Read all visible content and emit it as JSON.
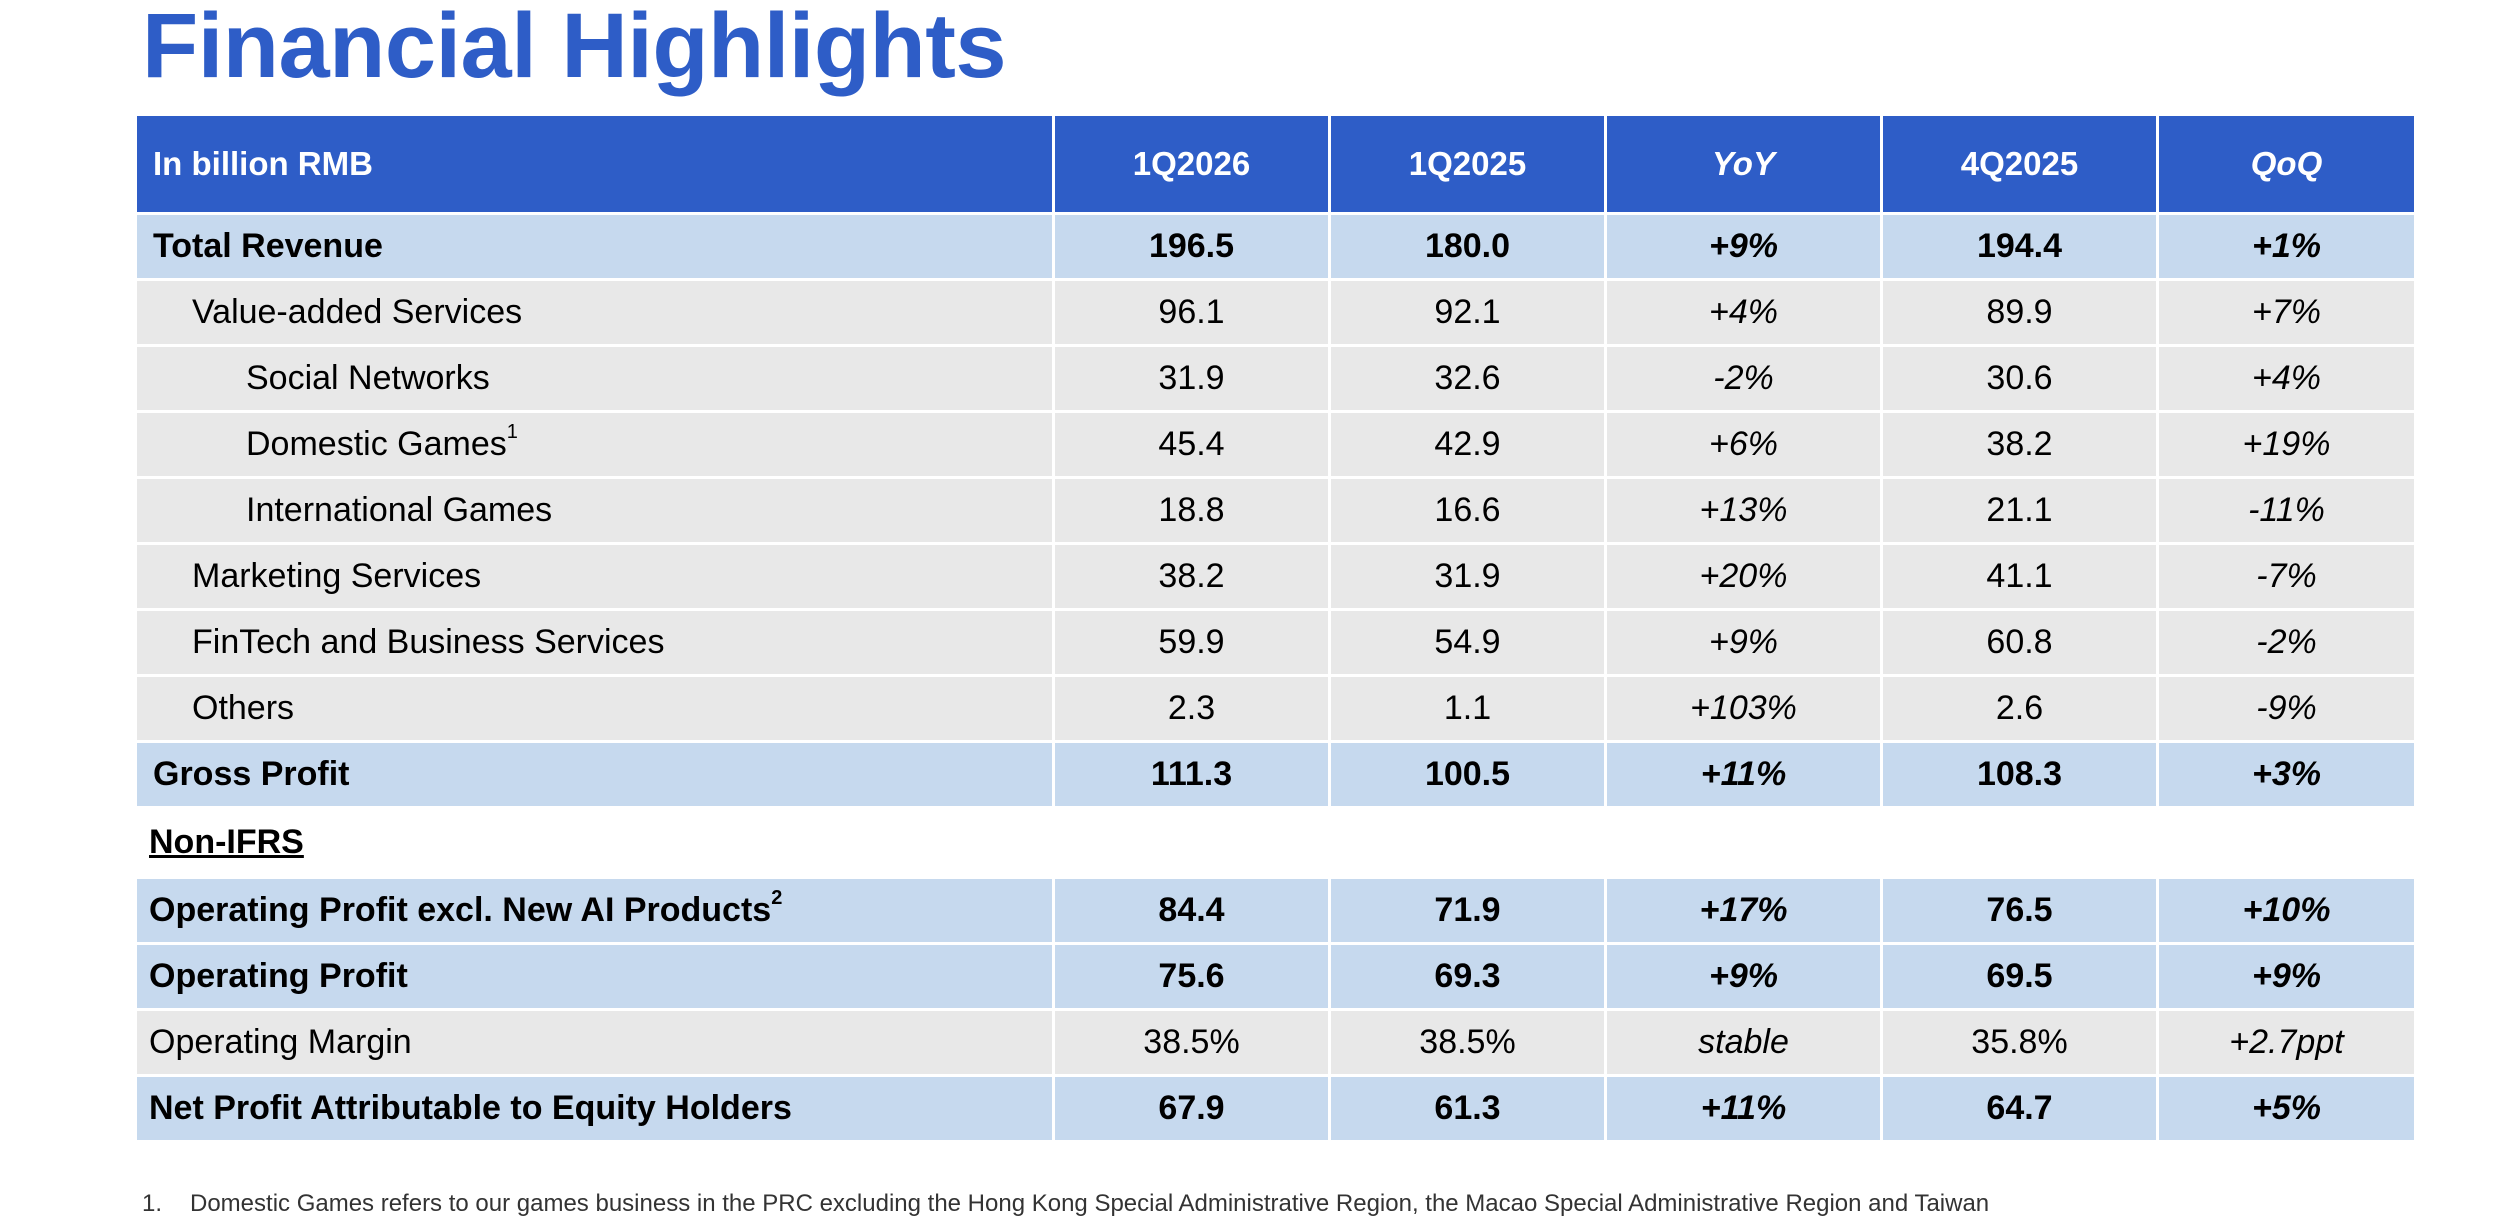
{
  "title": "Financial Highlights",
  "table": {
    "headers": [
      "In billion RMB",
      "1Q2026",
      "1Q2025",
      "YoY",
      "4Q2025",
      "QoQ"
    ],
    "rows": [
      {
        "label": "Total Revenue",
        "sup": "",
        "values": [
          "196.5",
          "180.0",
          "+9%",
          "194.4",
          "+1%"
        ]
      },
      {
        "label": "Value-added Services",
        "sup": "",
        "values": [
          "96.1",
          "92.1",
          "+4%",
          "89.9",
          "+7%"
        ]
      },
      {
        "label": "Social Networks",
        "sup": "",
        "values": [
          "31.9",
          "32.6",
          "-2%",
          "30.6",
          "+4%"
        ]
      },
      {
        "label": "Domestic Games",
        "sup": "1",
        "values": [
          "45.4",
          "42.9",
          "+6%",
          "38.2",
          "+19%"
        ]
      },
      {
        "label": "International Games",
        "sup": "",
        "values": [
          "18.8",
          "16.6",
          "+13%",
          "21.1",
          "-11%"
        ]
      },
      {
        "label": "Marketing Services",
        "sup": "",
        "values": [
          "38.2",
          "31.9",
          "+20%",
          "41.1",
          "-7%"
        ]
      },
      {
        "label": "FinTech and Business Services",
        "sup": "",
        "values": [
          "59.9",
          "54.9",
          "+9%",
          "60.8",
          "-2%"
        ]
      },
      {
        "label": "Others",
        "sup": "",
        "values": [
          "2.3",
          "1.1",
          "+103%",
          "2.6",
          "-9%"
        ]
      },
      {
        "label": "Gross Profit",
        "sup": "",
        "values": [
          "111.3",
          "100.5",
          "+11%",
          "108.3",
          "+3%"
        ]
      }
    ],
    "section_label": "Non-IFRS",
    "nonifrs_rows": [
      {
        "label": "Operating Profit excl. New AI Products",
        "sup": "2",
        "values": [
          "84.4",
          "71.9",
          "+17%",
          "76.5",
          "+10%"
        ]
      },
      {
        "label": "Operating Profit",
        "sup": "",
        "values": [
          "75.6",
          "69.3",
          "+9%",
          "69.5",
          "+9%"
        ]
      },
      {
        "label": "Operating Margin",
        "sup": "",
        "values": [
          "38.5%",
          "38.5%",
          "stable",
          "35.8%",
          "+2.7ppt"
        ]
      },
      {
        "label": "Net Profit Attributable to Equity Holders",
        "sup": "",
        "values": [
          "67.9",
          "61.3",
          "+11%",
          "64.7",
          "+5%"
        ]
      }
    ]
  },
  "footnote": {
    "number": "1.",
    "text": "Domestic Games refers to our games business in the PRC excluding the Hong Kong Special Administrative Region, the Macao Special Administrative Region and Taiwan"
  },
  "colors": {
    "accent": "#2e5dc7",
    "highlight_row": "#c6d9ee",
    "standard_row": "#e8e8e8"
  }
}
